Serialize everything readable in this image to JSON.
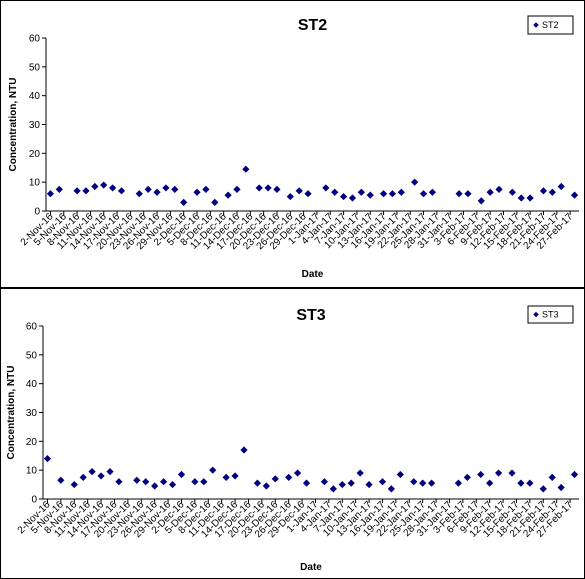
{
  "chart_data": [
    {
      "type": "scatter",
      "title": "ST2",
      "xlabel": "Date",
      "ylabel": "Concentration, NTU",
      "ylim": [
        0,
        60
      ],
      "yticks": [
        0,
        10,
        20,
        30,
        40,
        50,
        60
      ],
      "grid": false,
      "legend_position": "top-right",
      "x_tick_labels": [
        "2-Nov-16",
        "5-Nov-16",
        "8-Nov-16",
        "11-Nov-16",
        "14-Nov-16",
        "17-Nov-16",
        "20-Nov-16",
        "23-Nov-16",
        "26-Nov-16",
        "29-Nov-16",
        "2-Dec-16",
        "5-Dec-16",
        "8-Dec-16",
        "11-Dec-16",
        "14-Dec-16",
        "17-Dec-16",
        "20-Dec-16",
        "23-Dec-16",
        "26-Dec-16",
        "29-Dec-16",
        "1-Jan-17",
        "4-Jan-17",
        "7-Jan-17",
        "10-Jan-17",
        "13-Jan-17",
        "16-Jan-17",
        "19-Jan-17",
        "22-Jan-17",
        "25-Jan-17",
        "28-Jan-17",
        "31-Jan-17",
        "3-Feb-17",
        "6-Feb-17",
        "9-Feb-17",
        "12-Feb-17",
        "15-Feb-17",
        "18-Feb-17",
        "21-Feb-17",
        "24-Feb-17",
        "27-Feb-17"
      ],
      "series": [
        {
          "name": "ST2",
          "color": "#000080",
          "points": [
            {
              "x": "2-Nov-16",
              "y": 6
            },
            {
              "x": "4-Nov-16",
              "y": 7.5
            },
            {
              "x": "8-Nov-16",
              "y": 7
            },
            {
              "x": "10-Nov-16",
              "y": 7
            },
            {
              "x": "12-Nov-16",
              "y": 8.5
            },
            {
              "x": "14-Nov-16",
              "y": 9
            },
            {
              "x": "16-Nov-16",
              "y": 8
            },
            {
              "x": "18-Nov-16",
              "y": 7
            },
            {
              "x": "22-Nov-16",
              "y": 6
            },
            {
              "x": "24-Nov-16",
              "y": 7.5
            },
            {
              "x": "26-Nov-16",
              "y": 6.5
            },
            {
              "x": "28-Nov-16",
              "y": 8
            },
            {
              "x": "30-Nov-16",
              "y": 7.5
            },
            {
              "x": "2-Dec-16",
              "y": 3
            },
            {
              "x": "5-Dec-16",
              "y": 6.5
            },
            {
              "x": "7-Dec-16",
              "y": 7.5
            },
            {
              "x": "9-Dec-16",
              "y": 3
            },
            {
              "x": "12-Dec-16",
              "y": 5.5
            },
            {
              "x": "14-Dec-16",
              "y": 7.5
            },
            {
              "x": "16-Dec-16",
              "y": 14.5
            },
            {
              "x": "19-Dec-16",
              "y": 8
            },
            {
              "x": "21-Dec-16",
              "y": 8
            },
            {
              "x": "23-Dec-16",
              "y": 7.5
            },
            {
              "x": "26-Dec-16",
              "y": 5
            },
            {
              "x": "28-Dec-16",
              "y": 7
            },
            {
              "x": "30-Dec-16",
              "y": 6
            },
            {
              "x": "3-Jan-17",
              "y": 8
            },
            {
              "x": "5-Jan-17",
              "y": 6.5
            },
            {
              "x": "7-Jan-17",
              "y": 5
            },
            {
              "x": "9-Jan-17",
              "y": 4.5
            },
            {
              "x": "11-Jan-17",
              "y": 6.5
            },
            {
              "x": "13-Jan-17",
              "y": 5.5
            },
            {
              "x": "16-Jan-17",
              "y": 6
            },
            {
              "x": "18-Jan-17",
              "y": 6
            },
            {
              "x": "20-Jan-17",
              "y": 6.5
            },
            {
              "x": "23-Jan-17",
              "y": 10
            },
            {
              "x": "25-Jan-17",
              "y": 6
            },
            {
              "x": "27-Jan-17",
              "y": 6.5
            },
            {
              "x": "2-Feb-17",
              "y": 6
            },
            {
              "x": "4-Feb-17",
              "y": 6
            },
            {
              "x": "7-Feb-17",
              "y": 3.5
            },
            {
              "x": "9-Feb-17",
              "y": 6.5
            },
            {
              "x": "11-Feb-17",
              "y": 7.5
            },
            {
              "x": "14-Feb-17",
              "y": 6.5
            },
            {
              "x": "16-Feb-17",
              "y": 4.5
            },
            {
              "x": "18-Feb-17",
              "y": 4.5
            },
            {
              "x": "21-Feb-17",
              "y": 7
            },
            {
              "x": "23-Feb-17",
              "y": 6.5
            },
            {
              "x": "25-Feb-17",
              "y": 8.5
            },
            {
              "x": "28-Feb-17",
              "y": 5.5
            }
          ]
        }
      ]
    },
    {
      "type": "scatter",
      "title": "ST3",
      "xlabel": "Date",
      "ylabel": "Concentration, NTU",
      "ylim": [
        0,
        60
      ],
      "yticks": [
        0,
        10,
        20,
        30,
        40,
        50,
        60
      ],
      "grid": false,
      "legend_position": "top-right",
      "x_tick_labels": [
        "2-Nov-16",
        "5-Nov-16",
        "8-Nov-16",
        "11-Nov-16",
        "14-Nov-16",
        "17-Nov-16",
        "20-Nov-16",
        "23-Nov-16",
        "26-Nov-16",
        "29-Nov-16",
        "2-Dec-16",
        "5-Dec-16",
        "8-Dec-16",
        "11-Dec-16",
        "14-Dec-16",
        "17-Dec-16",
        "20-Dec-16",
        "23-Dec-16",
        "26-Dec-16",
        "29-Dec-16",
        "1-Jan-17",
        "4-Jan-17",
        "7-Jan-17",
        "10-Jan-17",
        "13-Jan-17",
        "16-Jan-17",
        "19-Jan-17",
        "22-Jan-17",
        "25-Jan-17",
        "28-Jan-17",
        "31-Jan-17",
        "3-Feb-17",
        "6-Feb-17",
        "9-Feb-17",
        "12-Feb-17",
        "15-Feb-17",
        "18-Feb-17",
        "21-Feb-17",
        "24-Feb-17",
        "27-Feb-17"
      ],
      "series": [
        {
          "name": "ST3",
          "color": "#000080",
          "points": [
            {
              "x": "2-Nov-16",
              "y": 14
            },
            {
              "x": "5-Nov-16",
              "y": 6.5
            },
            {
              "x": "8-Nov-16",
              "y": 5
            },
            {
              "x": "10-Nov-16",
              "y": 7.5
            },
            {
              "x": "12-Nov-16",
              "y": 9.5
            },
            {
              "x": "14-Nov-16",
              "y": 8
            },
            {
              "x": "16-Nov-16",
              "y": 9.5
            },
            {
              "x": "18-Nov-16",
              "y": 6
            },
            {
              "x": "22-Nov-16",
              "y": 6.5
            },
            {
              "x": "24-Nov-16",
              "y": 6
            },
            {
              "x": "26-Nov-16",
              "y": 4.5
            },
            {
              "x": "28-Nov-16",
              "y": 6
            },
            {
              "x": "30-Nov-16",
              "y": 5
            },
            {
              "x": "2-Dec-16",
              "y": 8.5
            },
            {
              "x": "5-Dec-16",
              "y": 6
            },
            {
              "x": "7-Dec-16",
              "y": 6
            },
            {
              "x": "9-Dec-16",
              "y": 10
            },
            {
              "x": "12-Dec-16",
              "y": 7.5
            },
            {
              "x": "14-Dec-16",
              "y": 8
            },
            {
              "x": "16-Dec-16",
              "y": 17
            },
            {
              "x": "19-Dec-16",
              "y": 5.5
            },
            {
              "x": "21-Dec-16",
              "y": 4.5
            },
            {
              "x": "23-Dec-16",
              "y": 7
            },
            {
              "x": "26-Dec-16",
              "y": 7.5
            },
            {
              "x": "28-Dec-16",
              "y": 9
            },
            {
              "x": "30-Dec-16",
              "y": 5.5
            },
            {
              "x": "3-Jan-17",
              "y": 6
            },
            {
              "x": "5-Jan-17",
              "y": 3.5
            },
            {
              "x": "7-Jan-17",
              "y": 5
            },
            {
              "x": "9-Jan-17",
              "y": 5.5
            },
            {
              "x": "11-Jan-17",
              "y": 9
            },
            {
              "x": "13-Jan-17",
              "y": 5
            },
            {
              "x": "16-Jan-17",
              "y": 6
            },
            {
              "x": "18-Jan-17",
              "y": 3.5
            },
            {
              "x": "20-Jan-17",
              "y": 8.5
            },
            {
              "x": "23-Jan-17",
              "y": 6
            },
            {
              "x": "25-Jan-17",
              "y": 5.5
            },
            {
              "x": "27-Jan-17",
              "y": 5.5
            },
            {
              "x": "2-Feb-17",
              "y": 5.5
            },
            {
              "x": "4-Feb-17",
              "y": 7.5
            },
            {
              "x": "7-Feb-17",
              "y": 8.5
            },
            {
              "x": "9-Feb-17",
              "y": 5.5
            },
            {
              "x": "11-Feb-17",
              "y": 9
            },
            {
              "x": "14-Feb-17",
              "y": 9
            },
            {
              "x": "16-Feb-17",
              "y": 5.5
            },
            {
              "x": "18-Feb-17",
              "y": 5.5
            },
            {
              "x": "21-Feb-17",
              "y": 3.5
            },
            {
              "x": "23-Feb-17",
              "y": 7.5
            },
            {
              "x": "25-Feb-17",
              "y": 4
            },
            {
              "x": "28-Feb-17",
              "y": 8.5
            }
          ]
        }
      ]
    }
  ]
}
